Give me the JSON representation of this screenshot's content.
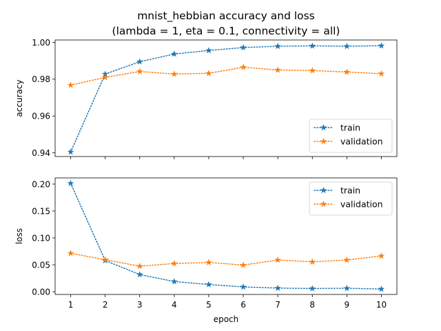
{
  "chart_data": {
    "type": "line",
    "title": "mnist_hebbian accuracy and loss",
    "subtitle": "(lambda = 1, eta = 0.1, connectivity = all)",
    "xlabel": "epoch",
    "x": [
      1,
      2,
      3,
      4,
      5,
      6,
      7,
      8,
      9,
      10
    ],
    "colors": {
      "train": "#1f77b4",
      "validation": "#ff7f0e"
    },
    "panels": [
      {
        "ylabel": "accuracy",
        "ylim": [
          0.938,
          1.0013
        ],
        "yticks": [
          0.94,
          0.96,
          0.98,
          1.0
        ],
        "ytick_labels": [
          "0.94",
          "0.96",
          "0.98",
          "1.00"
        ],
        "legend_position": "lower-right",
        "series": [
          {
            "name": "train",
            "values": [
              0.9405,
              0.9828,
              0.9895,
              0.9937,
              0.9956,
              0.9972,
              0.9979,
              0.9981,
              0.9979,
              0.9982
            ]
          },
          {
            "name": "validation",
            "values": [
              0.9768,
              0.981,
              0.9842,
              0.9828,
              0.9832,
              0.9865,
              0.985,
              0.9847,
              0.9839,
              0.983
            ]
          }
        ]
      },
      {
        "ylabel": "loss",
        "ylim": [
          -0.005,
          0.2115
        ],
        "yticks": [
          0.0,
          0.05,
          0.1,
          0.15,
          0.2
        ],
        "ytick_labels": [
          "0.00",
          "0.05",
          "0.10",
          "0.15",
          "0.20"
        ],
        "legend_position": "upper-right",
        "series": [
          {
            "name": "train",
            "values": [
              0.2015,
              0.058,
              0.032,
              0.019,
              0.0135,
              0.009,
              0.0068,
              0.006,
              0.0065,
              0.005
            ]
          },
          {
            "name": "validation",
            "values": [
              0.0715,
              0.0595,
              0.0475,
              0.0525,
              0.0545,
              0.0495,
              0.059,
              0.0555,
              0.059,
              0.0665
            ]
          }
        ]
      }
    ]
  }
}
